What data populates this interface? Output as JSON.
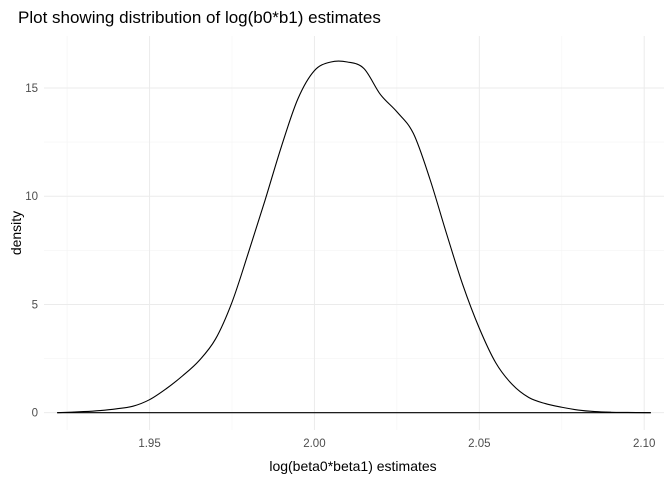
{
  "chart_data": {
    "type": "line",
    "title": "Plot showing distribution of log(b0*b1) estimates",
    "xlabel": "log(beta0*beta1) estimates",
    "ylabel": "density",
    "xlim": [
      1.918,
      2.106
    ],
    "ylim": [
      -0.8,
      17.4
    ],
    "x_ticks": [
      1.95,
      2.0,
      2.05,
      2.1
    ],
    "x_tick_labels": [
      "1.95",
      "2.00",
      "2.05",
      "2.10"
    ],
    "y_ticks": [
      0,
      5,
      10,
      15
    ],
    "y_tick_labels": [
      "0",
      "5",
      "10",
      "15"
    ],
    "grid": true,
    "legend": "none",
    "series": [
      {
        "x": [
          1.922,
          1.93,
          1.935,
          1.94,
          1.945,
          1.95,
          1.955,
          1.96,
          1.965,
          1.97,
          1.975,
          1.98,
          1.985,
          1.99,
          1.995,
          2.0,
          2.005,
          2.01,
          2.015,
          2.02,
          2.025,
          2.03,
          2.035,
          2.04,
          2.045,
          2.05,
          2.055,
          2.06,
          2.065,
          2.07,
          2.075,
          2.08,
          2.085,
          2.09,
          2.095,
          2.102
        ],
        "values": [
          0.0,
          0.05,
          0.1,
          0.18,
          0.3,
          0.6,
          1.1,
          1.7,
          2.4,
          3.4,
          5.1,
          7.4,
          9.8,
          12.3,
          14.5,
          15.8,
          16.2,
          16.2,
          15.9,
          14.7,
          13.9,
          12.9,
          10.8,
          8.3,
          5.9,
          3.9,
          2.3,
          1.3,
          0.7,
          0.42,
          0.25,
          0.12,
          0.05,
          0.02,
          0.01,
          0.0
        ]
      }
    ]
  }
}
